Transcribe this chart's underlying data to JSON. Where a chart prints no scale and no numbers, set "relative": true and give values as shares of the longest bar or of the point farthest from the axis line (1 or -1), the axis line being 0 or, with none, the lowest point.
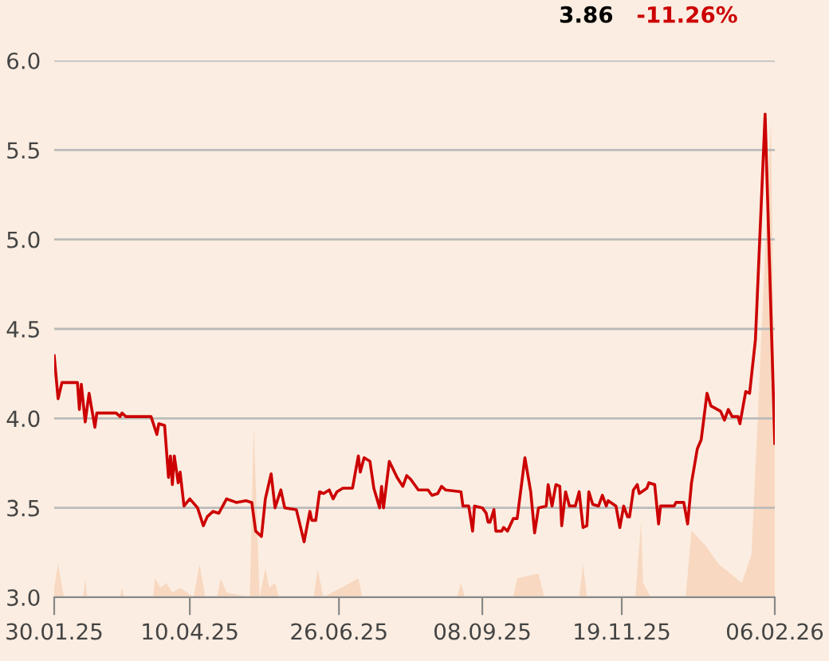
{
  "chart_data": [
    {
      "type": "area",
      "relative": true,
      "color": "#f8d8c0",
      "xlim": [
        "2025-01-30",
        "2026-02-06"
      ],
      "x": [
        "2025-01-30",
        "2025-02-01",
        "2025-02-04",
        "2025-02-14",
        "2025-02-15",
        "2025-02-16",
        "2025-03-05",
        "2025-03-06",
        "2025-03-07",
        "2025-03-22",
        "2025-03-23",
        "2025-03-26",
        "2025-03-29",
        "2025-04-01",
        "2025-04-05",
        "2025-04-12",
        "2025-04-15",
        "2025-04-18",
        "2025-04-24",
        "2025-04-26",
        "2025-04-29",
        "2025-05-11",
        "2025-05-13",
        "2025-05-16",
        "2025-05-19",
        "2025-05-21",
        "2025-05-24",
        "2025-05-26",
        "2025-06-13",
        "2025-06-15",
        "2025-06-18",
        "2025-07-06",
        "2025-07-08",
        "2025-08-26",
        "2025-08-28",
        "2025-08-30",
        "2025-09-24",
        "2025-09-26",
        "2025-10-07",
        "2025-10-10",
        "2025-10-28",
        "2025-10-30",
        "2025-11-01",
        "2025-11-26",
        "2025-11-29",
        "2025-11-30",
        "2025-12-04",
        "2025-12-22",
        "2025-12-25",
        "2026-01-01",
        "2026-01-08",
        "2026-01-20",
        "2026-01-25",
        "2026-01-28",
        "2026-02-04",
        "2026-02-06"
      ],
      "values": [
        0.02,
        0.07,
        0,
        0,
        0.04,
        0,
        0,
        0.02,
        0,
        0,
        0.04,
        0.02,
        0.03,
        0.01,
        0.02,
        0,
        0.07,
        0,
        0,
        0.04,
        0.01,
        0,
        0.36,
        0,
        0.06,
        0.02,
        0.03,
        0,
        0,
        0.06,
        0,
        0.04,
        0,
        0,
        0.03,
        0,
        0,
        0.04,
        0.05,
        0,
        0,
        0.07,
        0,
        0,
        0.16,
        0.03,
        0,
        0,
        0.14,
        0.11,
        0.07,
        0.03,
        0.09,
        0.36,
        1.0,
        0.32
      ]
    },
    {
      "type": "line",
      "color": "#cc0000",
      "grid": "y",
      "xlim": [
        "2025-01-30",
        "2026-02-06"
      ],
      "xticks": [
        {
          "value": "2025-01-30",
          "label": "30.01.25"
        },
        {
          "value": "2025-04-10",
          "label": "10.04.25"
        },
        {
          "value": "2025-06-26",
          "label": "26.06.25"
        },
        {
          "value": "2025-09-08",
          "label": "08.09.25"
        },
        {
          "value": "2025-11-19",
          "label": "19.11.25"
        },
        {
          "value": "2026-02-06",
          "label": "06.02.26"
        }
      ],
      "ylim": [
        3.0,
        6.0
      ],
      "yticks": [
        {
          "value": 3.0,
          "label": "3.0"
        },
        {
          "value": 3.5,
          "label": "3.5"
        },
        {
          "value": 4.0,
          "label": "4.0"
        },
        {
          "value": 4.5,
          "label": "4.5"
        },
        {
          "value": 5.0,
          "label": "5.0"
        },
        {
          "value": 5.5,
          "label": "5.5"
        },
        {
          "value": 6.0,
          "label": "6.0"
        }
      ],
      "annotations": [
        "3.86",
        "-11.26%"
      ],
      "x": [
        "2025-01-30",
        "2025-02-01",
        "2025-02-03",
        "2025-02-11",
        "2025-02-12",
        "2025-02-13",
        "2025-02-15",
        "2025-02-17",
        "2025-02-20",
        "2025-02-21",
        "2025-03-03",
        "2025-03-05",
        "2025-03-06",
        "2025-03-08",
        "2025-03-21",
        "2025-03-24",
        "2025-03-25",
        "2025-03-28",
        "2025-03-30",
        "2025-03-31",
        "2025-04-01",
        "2025-04-02",
        "2025-04-04",
        "2025-04-05",
        "2025-04-07",
        "2025-04-10",
        "2025-04-14",
        "2025-04-17",
        "2025-04-19",
        "2025-04-22",
        "2025-04-25",
        "2025-04-29",
        "2025-05-04",
        "2025-05-09",
        "2025-05-12",
        "2025-05-14",
        "2025-05-17",
        "2025-05-19",
        "2025-05-22",
        "2025-05-24",
        "2025-05-27",
        "2025-05-29",
        "2025-06-04",
        "2025-06-08",
        "2025-06-11",
        "2025-06-12",
        "2025-06-14",
        "2025-06-16",
        "2025-06-18",
        "2025-06-21",
        "2025-06-23",
        "2025-06-25",
        "2025-06-28",
        "2025-07-03",
        "2025-07-06",
        "2025-07-07",
        "2025-07-09",
        "2025-07-12",
        "2025-07-14",
        "2025-07-17",
        "2025-07-18",
        "2025-07-19",
        "2025-07-22",
        "2025-07-26",
        "2025-07-29",
        "2025-07-31",
        "2025-08-02",
        "2025-08-06",
        "2025-08-11",
        "2025-08-13",
        "2025-08-16",
        "2025-08-18",
        "2025-08-20",
        "2025-08-28",
        "2025-08-29",
        "2025-09-01",
        "2025-09-03",
        "2025-09-04",
        "2025-09-08",
        "2025-09-10",
        "2025-09-11",
        "2025-09-12",
        "2025-09-14",
        "2025-09-15",
        "2025-09-18",
        "2025-09-19",
        "2025-09-21",
        "2025-09-24",
        "2025-09-26",
        "2025-09-30",
        "2025-10-03",
        "2025-10-05",
        "2025-10-07",
        "2025-10-11",
        "2025-10-12",
        "2025-10-14",
        "2025-10-16",
        "2025-10-18",
        "2025-10-19",
        "2025-10-21",
        "2025-10-23",
        "2025-10-26",
        "2025-10-28",
        "2025-10-30",
        "2025-11-01",
        "2025-11-02",
        "2025-11-04",
        "2025-11-07",
        "2025-11-09",
        "2025-11-11",
        "2025-11-12",
        "2025-11-16",
        "2025-11-18",
        "2025-11-20",
        "2025-11-22",
        "2025-11-23",
        "2025-11-25",
        "2025-11-27",
        "2025-11-28",
        "2025-12-02",
        "2025-12-03",
        "2025-12-06",
        "2025-12-08",
        "2025-12-09",
        "2025-12-16",
        "2025-12-17",
        "2025-12-21",
        "2025-12-23",
        "2025-12-25",
        "2025-12-28",
        "2025-12-30",
        "2026-01-02",
        "2026-01-04",
        "2026-01-09",
        "2026-01-11",
        "2026-01-13",
        "2026-01-15",
        "2026-01-18",
        "2026-01-19",
        "2026-01-22",
        "2026-01-24",
        "2026-01-27",
        "2026-02-01",
        "2026-02-06"
      ],
      "values": [
        4.35,
        4.11,
        4.2,
        4.2,
        4.05,
        4.19,
        3.98,
        4.14,
        3.95,
        4.03,
        4.03,
        4.01,
        4.03,
        4.01,
        4.01,
        3.91,
        3.97,
        3.96,
        3.67,
        3.79,
        3.63,
        3.79,
        3.64,
        3.7,
        3.51,
        3.55,
        3.5,
        3.4,
        3.45,
        3.48,
        3.47,
        3.55,
        3.53,
        3.54,
        3.53,
        3.37,
        3.34,
        3.55,
        3.69,
        3.5,
        3.6,
        3.5,
        3.49,
        3.31,
        3.48,
        3.43,
        3.43,
        3.59,
        3.58,
        3.6,
        3.55,
        3.59,
        3.61,
        3.61,
        3.79,
        3.7,
        3.78,
        3.76,
        3.61,
        3.5,
        3.62,
        3.5,
        3.76,
        3.67,
        3.62,
        3.68,
        3.66,
        3.6,
        3.6,
        3.57,
        3.58,
        3.62,
        3.6,
        3.59,
        3.51,
        3.51,
        3.37,
        3.51,
        3.5,
        3.47,
        3.42,
        3.42,
        3.49,
        3.37,
        3.37,
        3.39,
        3.37,
        3.44,
        3.44,
        3.78,
        3.59,
        3.36,
        3.5,
        3.51,
        3.63,
        3.51,
        3.63,
        3.62,
        3.4,
        3.59,
        3.51,
        3.51,
        3.59,
        3.39,
        3.4,
        3.59,
        3.52,
        3.51,
        3.57,
        3.51,
        3.54,
        3.51,
        3.39,
        3.51,
        3.45,
        3.45,
        3.6,
        3.63,
        3.58,
        3.61,
        3.64,
        3.63,
        3.41,
        3.51,
        3.51,
        3.53,
        3.53,
        3.41,
        3.64,
        3.83,
        3.88,
        4.14,
        4.07,
        4.04,
        3.99,
        4.05,
        4.01,
        4.01,
        3.97,
        4.15,
        4.14,
        4.44,
        5.7,
        3.86
      ]
    }
  ]
}
